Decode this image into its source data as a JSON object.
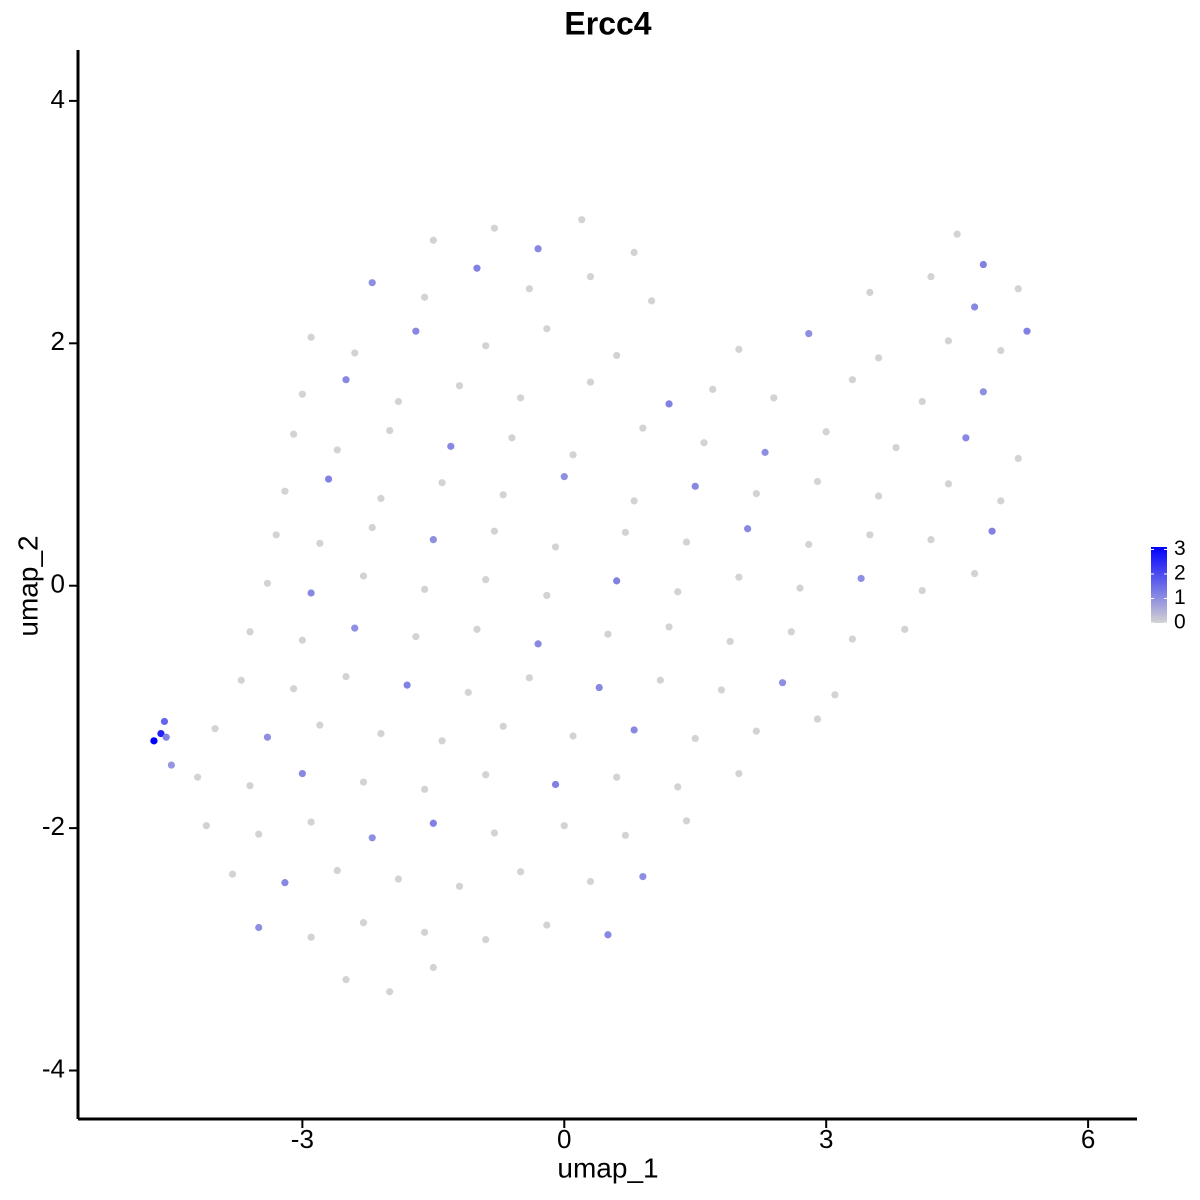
{
  "chart_data": {
    "type": "scatter",
    "title": "Ercc4",
    "x_label": "umap_1",
    "y_label": "umap_2",
    "xlim": [
      -5.57,
      6.56
    ],
    "ylim": [
      -4.4,
      4.42
    ],
    "xticks": [
      -3,
      0,
      3,
      6
    ],
    "yticks": [
      -4,
      -2,
      0,
      2,
      4
    ],
    "color_low": "#d3d3d3",
    "color_high": "#0000ff",
    "legend": "right",
    "colorbar": {
      "lim": [
        0,
        3.1
      ],
      "ticks": [
        0,
        1,
        2,
        3
      ]
    },
    "x": [
      -1.5,
      -0.8,
      -0.3,
      0.2,
      0.8,
      4.5,
      4.8,
      -2.2,
      -1.6,
      -1,
      -0.4,
      0.3,
      1.0,
      3.5,
      4.2,
      4.7,
      5.2,
      -2.9,
      -2.4,
      -1.7,
      -0.9,
      -0.2,
      0.6,
      2.0,
      2.8,
      3.6,
      4.4,
      5.0,
      5.3,
      -3.0,
      -2.5,
      -1.9,
      -1.2,
      -0.5,
      0.3,
      1.2,
      1.7,
      2.4,
      3.3,
      4.1,
      4.8,
      -3.1,
      -2.6,
      -2.0,
      -1.3,
      -0.6,
      0.1,
      0.9,
      1.6,
      2.3,
      3.0,
      3.8,
      4.6,
      5.2,
      -3.2,
      -2.7,
      -2.1,
      -1.4,
      -0.7,
      0.0,
      0.8,
      1.5,
      2.2,
      2.9,
      3.6,
      4.4,
      5.0,
      -3.3,
      -2.8,
      -2.2,
      -1.5,
      -0.8,
      -0.1,
      0.7,
      1.4,
      2.1,
      2.8,
      3.5,
      4.2,
      4.9,
      -3.4,
      -2.9,
      -2.3,
      -1.6,
      -0.9,
      -0.2,
      0.6,
      1.3,
      2.0,
      2.7,
      3.4,
      4.1,
      4.7,
      -3.6,
      -3.0,
      -2.4,
      -1.7,
      -1.0,
      -0.3,
      0.5,
      1.2,
      1.9,
      2.6,
      3.3,
      3.9,
      -3.7,
      -3.1,
      -2.5,
      -1.8,
      -1.1,
      -0.4,
      0.4,
      1.1,
      1.8,
      2.5,
      3.1,
      -4.0,
      -3.4,
      -2.8,
      -2.1,
      -1.4,
      -0.7,
      0.1,
      0.8,
      1.5,
      2.2,
      2.9,
      -4.2,
      -3.6,
      -3.0,
      -2.3,
      -1.6,
      -0.9,
      -0.1,
      0.6,
      1.3,
      2.0,
      -4.1,
      -3.5,
      -2.9,
      -2.2,
      -1.5,
      -0.8,
      0.0,
      0.7,
      1.4,
      -3.8,
      -3.2,
      -2.6,
      -1.9,
      -1.2,
      -0.5,
      0.3,
      0.9,
      -3.5,
      -2.9,
      -2.3,
      -1.6,
      -0.9,
      -0.2,
      0.5,
      -2.5,
      -2.0,
      -1.5,
      -4.7,
      -4.62,
      -4.58,
      -4.56,
      -4.5
    ],
    "y": [
      2.85,
      2.95,
      2.78,
      3.02,
      2.75,
      2.9,
      2.65,
      2.5,
      2.38,
      2.62,
      2.45,
      2.55,
      2.35,
      2.42,
      2.55,
      2.3,
      2.45,
      2.05,
      1.92,
      2.1,
      1.98,
      2.12,
      1.9,
      1.95,
      2.08,
      1.88,
      2.02,
      1.94,
      2.1,
      1.58,
      1.7,
      1.52,
      1.65,
      1.55,
      1.68,
      1.5,
      1.62,
      1.55,
      1.7,
      1.52,
      1.6,
      1.25,
      1.12,
      1.28,
      1.15,
      1.22,
      1.08,
      1.3,
      1.18,
      1.1,
      1.27,
      1.14,
      1.22,
      1.05,
      0.78,
      0.88,
      0.72,
      0.85,
      0.75,
      0.9,
      0.7,
      0.82,
      0.76,
      0.86,
      0.74,
      0.84,
      0.7,
      0.42,
      0.35,
      0.48,
      0.38,
      0.45,
      0.32,
      0.44,
      0.36,
      0.47,
      0.34,
      0.42,
      0.38,
      0.45,
      0.02,
      -0.06,
      0.08,
      -0.03,
      0.05,
      -0.08,
      0.04,
      -0.05,
      0.07,
      -0.02,
      0.06,
      -0.04,
      0.1,
      -0.38,
      -0.45,
      -0.35,
      -0.42,
      -0.36,
      -0.48,
      -0.4,
      -0.34,
      -0.46,
      -0.38,
      -0.44,
      -0.36,
      -0.78,
      -0.85,
      -0.75,
      -0.82,
      -0.88,
      -0.76,
      -0.84,
      -0.78,
      -0.86,
      -0.8,
      -0.9,
      -1.18,
      -1.25,
      -1.15,
      -1.22,
      -1.28,
      -1.16,
      -1.24,
      -1.19,
      -1.26,
      -1.2,
      -1.1,
      -1.58,
      -1.65,
      -1.55,
      -1.62,
      -1.68,
      -1.56,
      -1.64,
      -1.58,
      -1.66,
      -1.55,
      -1.98,
      -2.05,
      -1.95,
      -2.08,
      -1.96,
      -2.04,
      -1.98,
      -2.06,
      -1.94,
      -2.38,
      -2.45,
      -2.35,
      -2.42,
      -2.48,
      -2.36,
      -2.44,
      -2.4,
      -2.82,
      -2.9,
      -2.78,
      -2.86,
      -2.92,
      -2.8,
      -2.88,
      -3.25,
      -3.35,
      -3.15,
      -1.28,
      -1.22,
      -1.12,
      -1.25,
      -1.48
    ],
    "values": [
      0,
      0,
      1.1,
      0,
      0,
      0,
      1.2,
      1.0,
      0,
      1.2,
      0,
      0,
      0,
      0,
      0,
      1.1,
      0,
      0,
      0,
      1.1,
      0,
      0,
      0,
      0,
      1.0,
      0,
      0,
      0,
      1.2,
      0,
      1.1,
      0,
      0,
      0,
      0,
      1.2,
      0,
      0,
      0,
      0,
      1.0,
      0,
      0,
      0,
      1.1,
      0,
      0,
      0,
      0,
      1.0,
      0,
      0,
      1.1,
      0,
      0,
      1.2,
      0,
      0,
      0,
      1.0,
      0,
      1.1,
      0,
      0,
      0,
      0,
      0,
      0,
      0,
      0,
      1.0,
      0,
      0,
      0,
      0,
      1.1,
      0,
      0,
      0,
      1.2,
      0,
      1.1,
      0,
      0,
      0,
      0,
      1.2,
      0,
      0,
      0,
      1.0,
      0,
      0,
      0,
      0,
      1.0,
      0,
      0,
      1.1,
      0,
      0,
      0,
      0,
      0,
      0,
      0,
      0,
      0,
      1.2,
      0,
      0,
      1.1,
      0,
      0,
      1.0,
      0,
      0,
      1.0,
      0,
      0,
      0,
      0,
      0,
      1.1,
      0,
      0,
      0,
      0,
      0,
      1.1,
      0,
      0,
      0,
      1.2,
      0,
      0,
      0,
      0,
      0,
      0,
      1.0,
      1.2,
      0,
      0,
      0,
      0,
      0,
      1.1,
      0,
      0,
      0,
      0,
      0,
      1.0,
      1.0,
      0,
      0,
      0,
      0,
      0,
      1.1,
      0,
      0,
      0,
      3.1,
      2.6,
      1.6,
      1.2,
      0.9
    ]
  }
}
